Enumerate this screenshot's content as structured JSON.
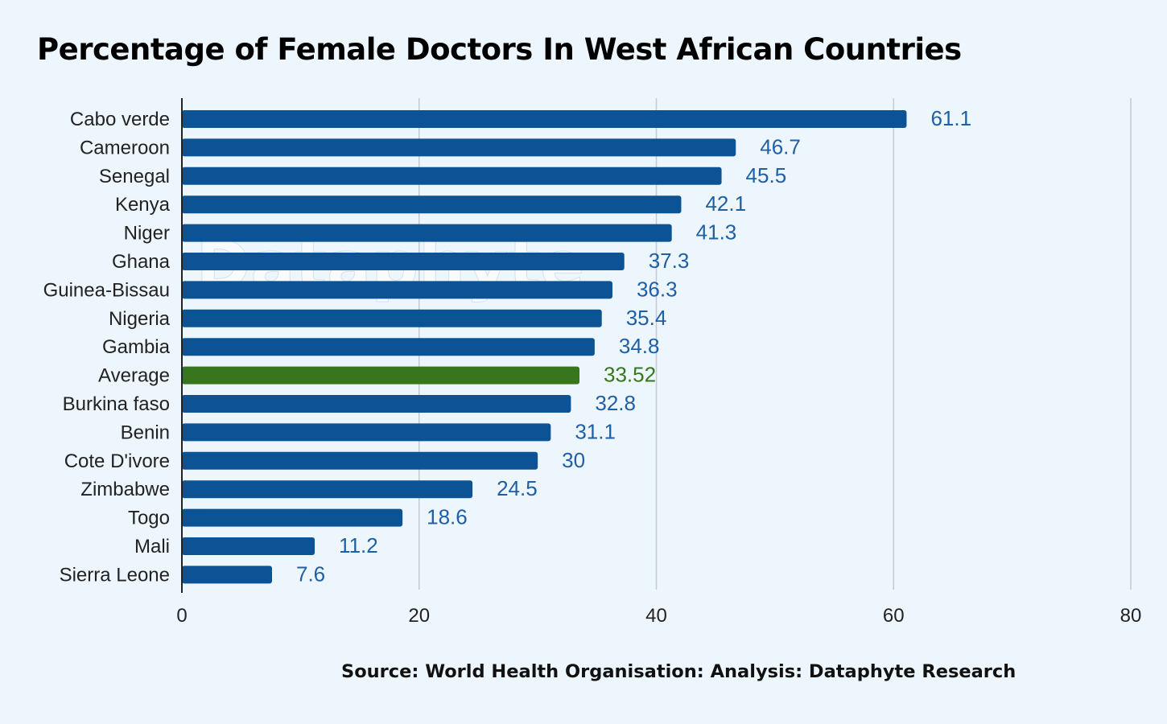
{
  "title": "Percentage of Female Doctors In West African Countries",
  "source": "Source: World Health Organisation: Analysis: Dataphyte Research",
  "watermark": "Dataphyte",
  "colors": {
    "background": "#eef6fd",
    "bar": "#0b5394",
    "highlight_bar": "#38761d",
    "label": "#1f5fa6",
    "highlight_label": "#38761d",
    "grid": "#c4c9cf",
    "axis": "#222222",
    "text": "#222222"
  },
  "chart_data": {
    "type": "bar",
    "orientation": "horizontal",
    "categories": [
      "Cabo verde",
      "Cameroon",
      "Senegal",
      "Kenya",
      "Niger",
      "Ghana",
      "Guinea-Bissau",
      "Nigeria",
      "Gambia",
      "Average",
      "Burkina faso",
      "Benin",
      "Cote D'ivore",
      "Zimbabwe",
      "Togo",
      "Mali",
      "Sierra Leone"
    ],
    "values": [
      61.1,
      46.7,
      45.5,
      42.1,
      41.3,
      37.3,
      36.3,
      35.4,
      34.8,
      33.52,
      32.8,
      31.1,
      30,
      24.5,
      18.6,
      11.2,
      7.6
    ],
    "data_labels": [
      "61.1",
      "46.7",
      "45.5",
      "42.1",
      "41.3",
      "37.3",
      "36.3",
      "35.4",
      "34.8",
      "33.52",
      "32.8",
      "31.1",
      "30",
      "24.5",
      "18.6",
      "11.2",
      "7.6"
    ],
    "highlight_category": "Average",
    "xlim": [
      0,
      80
    ],
    "xticks": [
      0,
      20,
      40,
      60,
      80
    ],
    "xtick_labels": [
      "0",
      "20",
      "40",
      "60",
      "80"
    ],
    "grid": "vertical",
    "legend": "none",
    "xlabel": "",
    "ylabel": ""
  }
}
